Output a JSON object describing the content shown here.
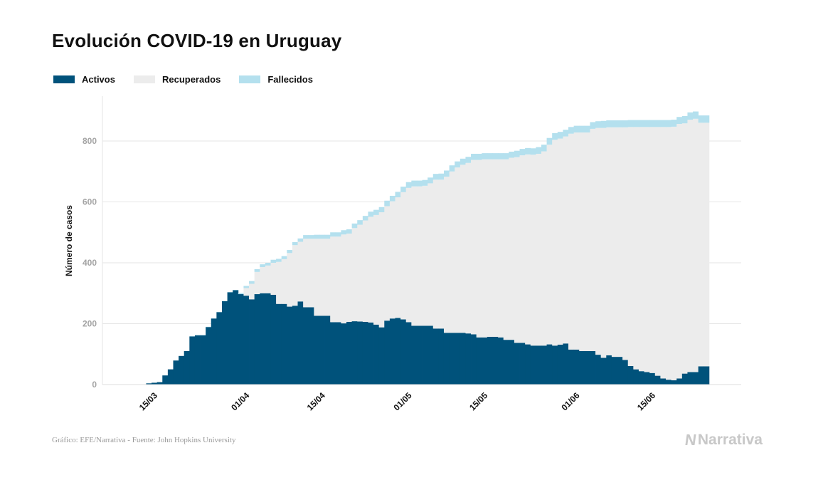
{
  "title": "Evolución COVID-19 en Uruguay",
  "legend": {
    "activos": "Activos",
    "recuperados": "Recuperados",
    "fallecidos": "Fallecidos"
  },
  "footer": "Gráfico: EFE/Narrativa - Fuente: John Hopkins University",
  "logo": {
    "text": "Narrativa",
    "icon": "narrativa-n-icon"
  },
  "colors": {
    "activos": "#00527b",
    "recuperados": "#ececec",
    "fallecidos": "#b4e0ee",
    "grid": "#e6e6e6"
  },
  "chart_data": {
    "type": "area",
    "stacked": true,
    "title": "Evolución COVID-19 en Uruguay",
    "ylabel": "Número de casos",
    "xlabel": "",
    "ylim": [
      0,
      950
    ],
    "yticks": [
      0,
      200,
      400,
      600,
      800
    ],
    "x_start_date": "2020-03-10",
    "xtick_labels": [
      "15/03",
      "01/04",
      "15/04",
      "01/05",
      "15/05",
      "01/06",
      "15/06"
    ],
    "xtick_day_index": [
      5,
      22,
      36,
      52,
      66,
      83,
      97
    ],
    "legend_position": "top-left",
    "series": [
      {
        "name": "Activos",
        "values": [
          0,
          0,
          0,
          0,
          4,
          6,
          8,
          30,
          50,
          79,
          94,
          110,
          158,
          162,
          162,
          189,
          217,
          238,
          274,
          303,
          310,
          297,
          292,
          280,
          297,
          300,
          300,
          295,
          265,
          265,
          256,
          259,
          273,
          254,
          254,
          226,
          226,
          226,
          205,
          205,
          201,
          206,
          208,
          207,
          206,
          204,
          197,
          188,
          210,
          217,
          219,
          214,
          205,
          193,
          193,
          193,
          193,
          184,
          184,
          170,
          170,
          170,
          170,
          168,
          165,
          155,
          155,
          157,
          157,
          155,
          147,
          147,
          137,
          137,
          132,
          128,
          128,
          128,
          132,
          128,
          131,
          135,
          115,
          115,
          110,
          110,
          110,
          98,
          88,
          96,
          91,
          91,
          81,
          61,
          50,
          44,
          41,
          38,
          29,
          20,
          16,
          14,
          20,
          36,
          41,
          41,
          60,
          60
        ]
      },
      {
        "name": "Recuperados",
        "values": [
          0,
          0,
          0,
          0,
          0,
          0,
          0,
          0,
          0,
          0,
          0,
          0,
          0,
          0,
          0,
          0,
          0,
          0,
          0,
          0,
          0,
          0,
          25,
          51,
          73,
          86,
          91,
          105,
          138,
          147,
          176,
          199,
          196,
          225,
          225,
          253,
          253,
          253,
          281,
          281,
          292,
          290,
          306,
          318,
          333,
          347,
          360,
          378,
          376,
          385,
          396,
          418,
          441,
          458,
          458,
          460,
          468,
          489,
          489,
          513,
          530,
          543,
          552,
          560,
          573,
          583,
          585,
          583,
          583,
          585,
          593,
          598,
          610,
          616,
          624,
          627,
          630,
          638,
          656,
          676,
          677,
          680,
          709,
          713,
          718,
          718,
          730,
          745,
          755,
          749,
          754,
          754,
          764,
          785,
          796,
          802,
          805,
          808,
          817,
          826,
          830,
          833,
          836,
          822,
          829,
          832,
          800,
          800
        ]
      },
      {
        "name": "Fallecidos",
        "values": [
          0,
          0,
          0,
          0,
          0,
          0,
          0,
          0,
          0,
          0,
          0,
          0,
          1,
          1,
          1,
          1,
          1,
          1,
          1,
          1,
          1,
          4,
          7,
          9,
          9,
          9,
          9,
          10,
          10,
          10,
          10,
          10,
          11,
          12,
          12,
          13,
          13,
          13,
          14,
          14,
          14,
          14,
          15,
          15,
          15,
          17,
          17,
          17,
          18,
          18,
          18,
          18,
          19,
          19,
          19,
          19,
          19,
          19,
          20,
          20,
          20,
          20,
          20,
          20,
          20,
          20,
          20,
          20,
          20,
          20,
          20,
          20,
          21,
          21,
          21,
          21,
          22,
          22,
          22,
          22,
          22,
          22,
          22,
          22,
          22,
          22,
          22,
          22,
          23,
          23,
          23,
          23,
          23,
          23,
          23,
          23,
          23,
          23,
          23,
          23,
          23,
          23,
          23,
          24,
          24,
          24,
          24,
          24
        ]
      }
    ]
  }
}
